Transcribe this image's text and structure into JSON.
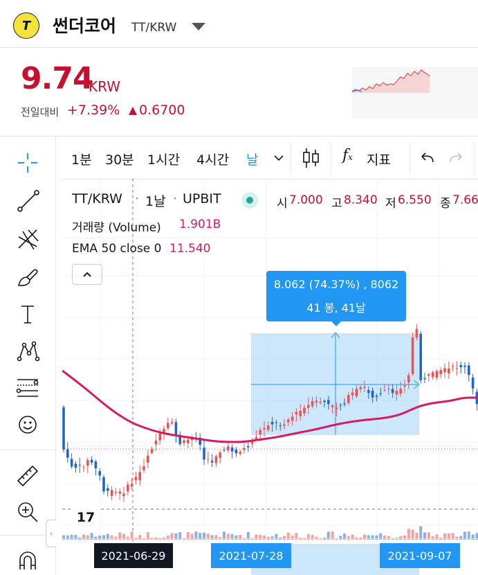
{
  "header": {
    "logo_text": "T",
    "coin_name": "썬더코어",
    "pair": "TT/KRW"
  },
  "price": {
    "value": "9.74",
    "unit": "KRW",
    "change_label": "전일대비",
    "change_pct": "+7.39%",
    "change_abs": "0.6700"
  },
  "toolbar": {
    "timeframes": [
      "1분",
      "30분",
      "1시간",
      "4시간",
      "날"
    ],
    "indicator_label": "지표"
  },
  "legend": {
    "symbol": "TT/KRW",
    "interval": "1날",
    "exchange": "UPBIT",
    "open_label": "시",
    "open": "7.000",
    "high_label": "고",
    "high": "8.340",
    "low_label": "저",
    "low": "6.550",
    "close_label": "종",
    "close": "7.66",
    "volume_label": "거래량 (Volume)",
    "volume": "1.901B",
    "ema_label": "EMA 50 close 0",
    "ema": "11.540"
  },
  "measure": {
    "line1": "8.062 (74.37%) , 8062",
    "line2": "41 봉, 41날"
  },
  "xaxis": {
    "crosshair_date": "2021-06-29",
    "range_start": "2021-07-28",
    "range_end": "2021-09-07"
  },
  "colors": {
    "up": "#ef5350",
    "down": "#1e66c9",
    "ema": "#d81b60",
    "accent": "#2196f3",
    "price": "#c8102e"
  }
}
